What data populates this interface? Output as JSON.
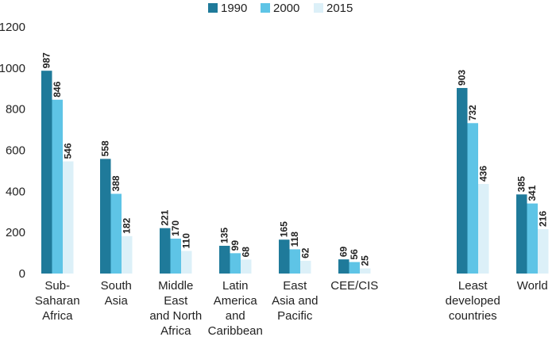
{
  "chart_data": {
    "type": "bar",
    "categories": [
      [
        "Sub-",
        "Saharan",
        "Africa"
      ],
      [
        "South",
        "Asia"
      ],
      [
        "Middle",
        "East",
        "and North",
        "Africa"
      ],
      [
        "Latin",
        "America",
        "and",
        "Caribbean"
      ],
      [
        "East",
        "Asia and",
        "Pacific"
      ],
      [
        "CEE/CIS"
      ],
      [
        "Least",
        "developed",
        "countries"
      ],
      [
        "World"
      ]
    ],
    "series": [
      {
        "name": "1990",
        "color": "#1f7a9a",
        "values": [
          987,
          558,
          221,
          135,
          165,
          69,
          903,
          385
        ]
      },
      {
        "name": "2000",
        "color": "#5ec4e6",
        "values": [
          846,
          388,
          170,
          99,
          118,
          56,
          732,
          341
        ]
      },
      {
        "name": "2015",
        "color": "#dcf0f8",
        "values": [
          546,
          182,
          110,
          68,
          62,
          25,
          436,
          216
        ]
      }
    ],
    "ylim": [
      0,
      1200
    ],
    "yticks": [
      0,
      200,
      400,
      600,
      800,
      1000,
      1200
    ],
    "grid": false,
    "legend_position": "top-center"
  }
}
